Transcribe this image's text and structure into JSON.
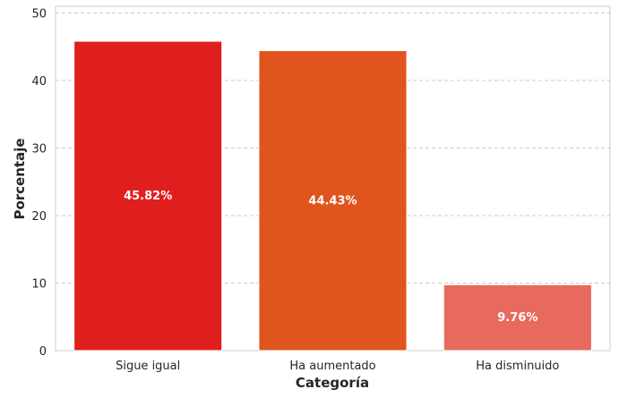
{
  "chart_data": {
    "type": "bar",
    "categories": [
      "Sigue igual",
      "Ha aumentado",
      "Ha disminuido"
    ],
    "values": [
      45.82,
      44.43,
      9.76
    ],
    "value_labels": [
      "45.82%",
      "44.43%",
      "9.76%"
    ],
    "colors": [
      "#e01e1e",
      "#e0541e",
      "#e8695e"
    ],
    "title": "",
    "xlabel": "Categoría",
    "ylabel": "Porcentaje",
    "ylim": [
      0,
      51
    ],
    "yticks": [
      0,
      10,
      20,
      30,
      40,
      50
    ],
    "grid": "y-dashed",
    "legend": "none"
  }
}
